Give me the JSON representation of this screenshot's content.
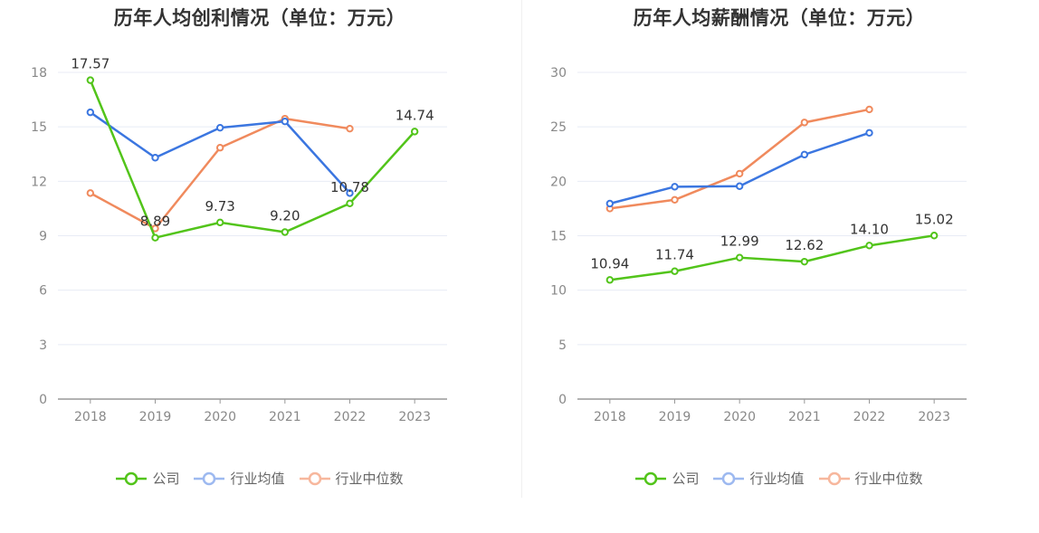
{
  "colors": {
    "company": "#52c41a",
    "industry_avg": "#3b76e0",
    "industry_median": "#f08a5d",
    "company_legend": "#52c41a",
    "industry_avg_legend": "#9db9f0",
    "industry_median_legend": "#f7b79d",
    "grid": "#e8ebf5",
    "axis": "#999999",
    "tick_text": "#888888",
    "label_text": "#333333"
  },
  "legend": {
    "company": "公司",
    "industry_avg": "行业均值",
    "industry_median": "行业中位数"
  },
  "chart_data": [
    {
      "type": "line",
      "title": "历年人均创利情况（单位：万元）",
      "categories": [
        "2018",
        "2019",
        "2020",
        "2021",
        "2022",
        "2023"
      ],
      "ylim": [
        0,
        18
      ],
      "yticks": [
        0,
        3,
        6,
        9,
        12,
        15,
        18
      ],
      "ytick_labels": [
        "0",
        "3",
        "6",
        "9",
        "12",
        "15",
        "18"
      ],
      "grid": true,
      "legend_position": "bottom-center",
      "series": [
        {
          "name": "公司",
          "key": "company",
          "values": [
            17.57,
            8.89,
            9.73,
            9.2,
            10.78,
            14.74
          ],
          "labels": [
            "17.57",
            "8.89",
            "9.73",
            "9.20",
            "10.78",
            "14.74"
          ]
        },
        {
          "name": "行业均值",
          "key": "industry_avg",
          "values": [
            15.8,
            13.3,
            14.95,
            15.3,
            11.35,
            null
          ]
        },
        {
          "name": "行业中位数",
          "key": "industry_median",
          "values": [
            11.35,
            9.4,
            13.85,
            15.45,
            14.9,
            null
          ]
        }
      ]
    },
    {
      "type": "line",
      "title": "历年人均薪酬情况（单位：万元）",
      "categories": [
        "2018",
        "2019",
        "2020",
        "2021",
        "2022",
        "2023"
      ],
      "ylim": [
        0,
        30
      ],
      "yticks": [
        0,
        5,
        10,
        15,
        20,
        25,
        30
      ],
      "ytick_labels": [
        "0",
        "5",
        "10",
        "15",
        "20",
        "25",
        "30"
      ],
      "grid": true,
      "legend_position": "bottom-center",
      "series": [
        {
          "name": "公司",
          "key": "company",
          "values": [
            10.94,
            11.74,
            12.99,
            12.62,
            14.1,
            15.02
          ],
          "labels": [
            "10.94",
            "11.74",
            "12.99",
            "12.62",
            "14.10",
            "15.02"
          ]
        },
        {
          "name": "行业均值",
          "key": "industry_avg",
          "values": [
            17.95,
            19.5,
            19.55,
            22.45,
            24.45,
            null
          ]
        },
        {
          "name": "行业中位数",
          "key": "industry_median",
          "values": [
            17.5,
            18.3,
            20.7,
            25.4,
            26.6,
            null
          ]
        }
      ]
    }
  ]
}
